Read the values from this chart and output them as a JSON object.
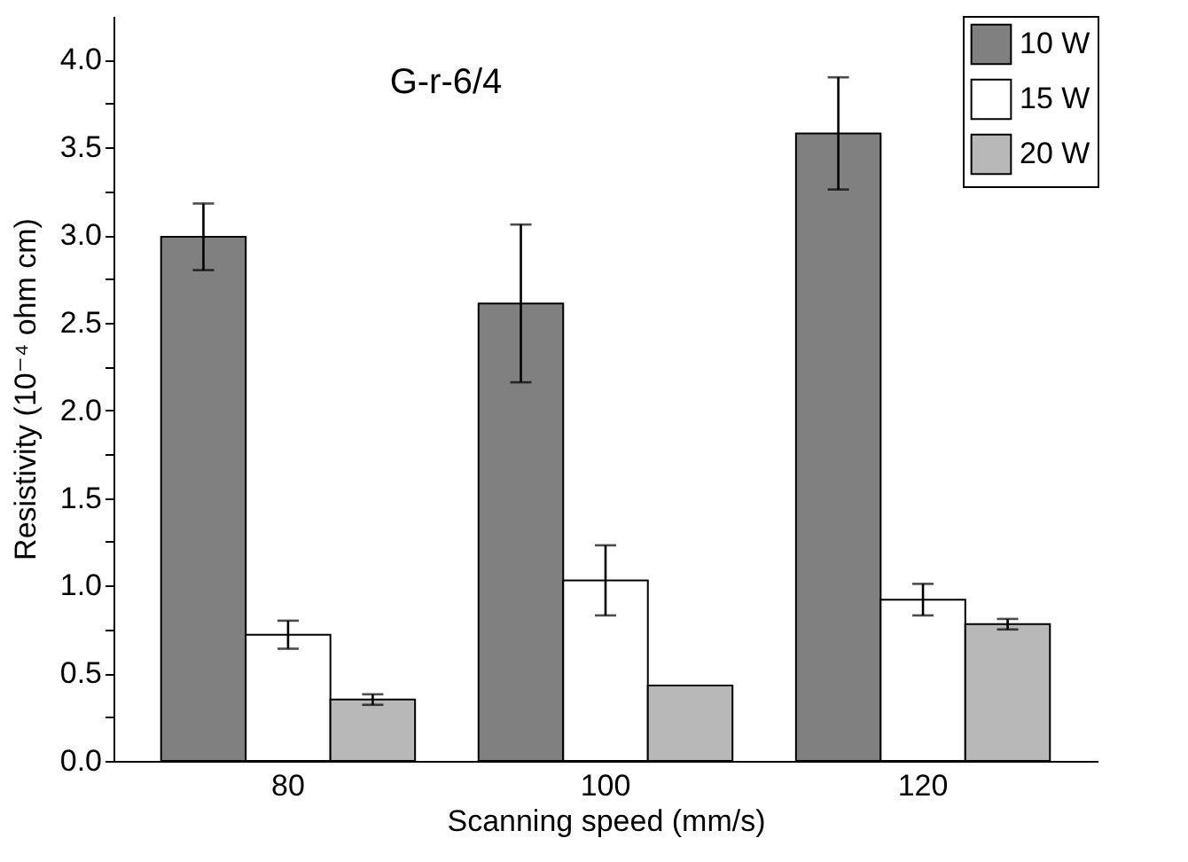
{
  "chart_data": {
    "type": "bar",
    "title": "G-r-6/4",
    "xlabel": "Scanning speed (mm/s)",
    "ylabel": "Resistivity (10⁻⁴ ohm cm)",
    "categories": [
      "80",
      "100",
      "120"
    ],
    "series": [
      {
        "name": "10 W",
        "color": "#808080",
        "values": [
          2.99,
          2.61,
          3.58
        ],
        "errors": [
          0.19,
          0.45,
          0.32
        ]
      },
      {
        "name": "15 W",
        "color": "#ffffff",
        "values": [
          0.72,
          1.03,
          0.92
        ],
        "errors": [
          0.08,
          0.2,
          0.09
        ]
      },
      {
        "name": "20 W",
        "color": "#b8b8b8",
        "values": [
          0.35,
          0.43,
          0.78
        ],
        "errors": [
          0.03,
          null,
          0.03
        ]
      }
    ],
    "ylim": [
      0,
      4.25
    ],
    "yticks": [
      {
        "value": 0,
        "label": "0.0"
      },
      {
        "value": 0.25,
        "label": null
      },
      {
        "value": 0.5,
        "label": "0.5"
      },
      {
        "value": 0.75,
        "label": null
      },
      {
        "value": 1,
        "label": "1.0"
      },
      {
        "value": 1.25,
        "label": null
      },
      {
        "value": 1.5,
        "label": "1.5"
      },
      {
        "value": 1.75,
        "label": null
      },
      {
        "value": 2,
        "label": "2.0"
      },
      {
        "value": 2.25,
        "label": null
      },
      {
        "value": 2.5,
        "label": "2.5"
      },
      {
        "value": 2.75,
        "label": null
      },
      {
        "value": 3,
        "label": "3.0"
      },
      {
        "value": 3.25,
        "label": null
      },
      {
        "value": 3.5,
        "label": "3.5"
      },
      {
        "value": 3.75,
        "label": null
      },
      {
        "value": 4,
        "label": "4.0"
      }
    ],
    "legend": "top right",
    "grid": false
  }
}
